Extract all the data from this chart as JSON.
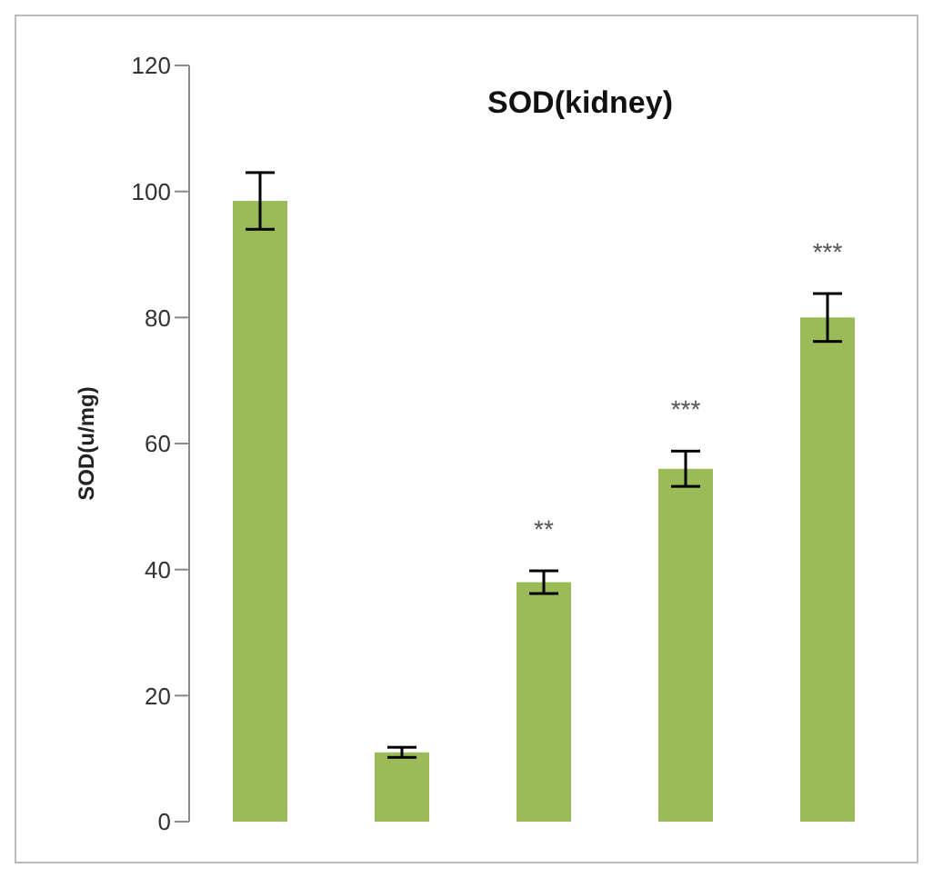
{
  "chart_data": {
    "type": "bar",
    "title": "SOD(kidney)",
    "ylabel": "SOD(u/mg)",
    "categories": [
      null,
      null,
      null,
      null,
      null
    ],
    "values": [
      98.5,
      11,
      38,
      56,
      80
    ],
    "errors": [
      4.5,
      0.8,
      1.8,
      2.8,
      3.8
    ],
    "color": "#9bbb59",
    "ylim": [
      0,
      120
    ],
    "yticks": [
      0,
      20,
      40,
      60,
      80,
      100,
      120
    ],
    "annotations": [
      "**",
      "***",
      "***"
    ]
  }
}
